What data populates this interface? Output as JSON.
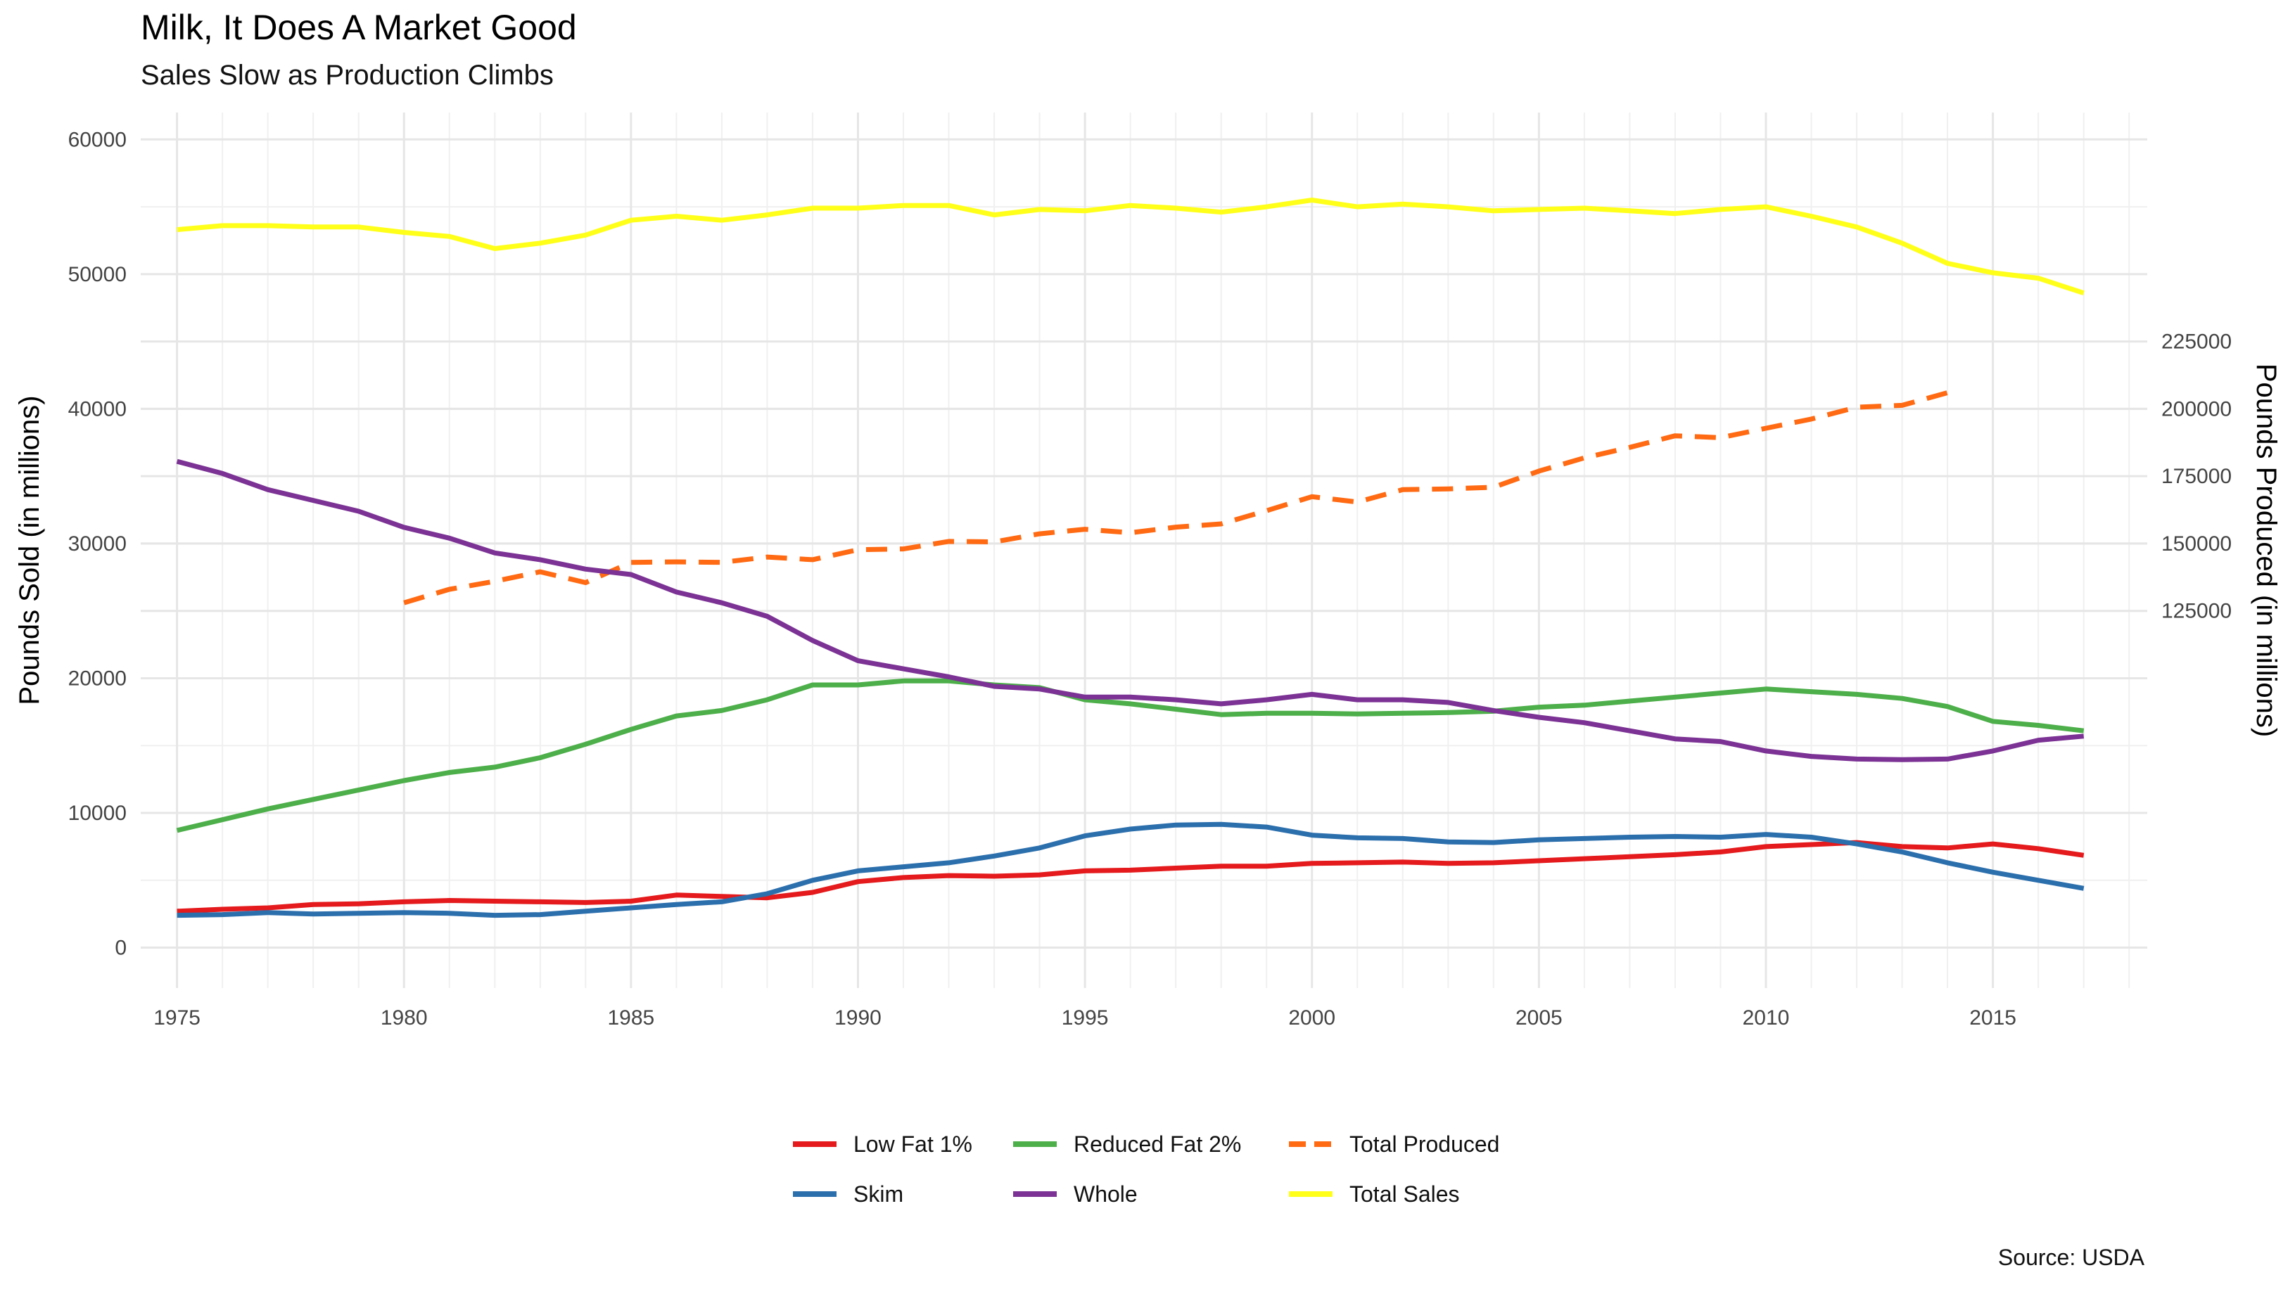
{
  "chart_data": {
    "type": "line",
    "title": "Milk, It Does A Market Good",
    "subtitle": "Sales Slow as Production Climbs",
    "caption": "Source: USDA",
    "ylabel": "Pounds Sold (in millions)",
    "y2label": "Pounds Produced (in millions)",
    "xlim": [
      1974.2,
      2018.4
    ],
    "ylim": [
      -3000,
      62000
    ],
    "y2_transform": {
      "note": "secondary axis maps produced = 5 * sold_axis",
      "factor": 5
    },
    "x_ticks": [
      1975,
      1980,
      1985,
      1990,
      1995,
      2000,
      2005,
      2010,
      2015
    ],
    "y_ticks": [
      0,
      10000,
      20000,
      30000,
      40000,
      50000,
      60000
    ],
    "y2_ticks": [
      125000,
      150000,
      175000,
      200000,
      225000
    ],
    "grid": true,
    "legend_position": "bottom",
    "x": [
      1975,
      1976,
      1977,
      1978,
      1979,
      1980,
      1981,
      1982,
      1983,
      1984,
      1985,
      1986,
      1987,
      1988,
      1989,
      1990,
      1991,
      1992,
      1993,
      1994,
      1995,
      1996,
      1997,
      1998,
      1999,
      2000,
      2001,
      2002,
      2003,
      2004,
      2005,
      2006,
      2007,
      2008,
      2009,
      2010,
      2011,
      2012,
      2013,
      2014,
      2015,
      2016,
      2017
    ],
    "series": [
      {
        "name": "Low Fat 1%",
        "color": "#e41a1c",
        "dashed": false,
        "axis": "left",
        "values": [
          2700,
          2850,
          2950,
          3200,
          3250,
          3400,
          3500,
          3450,
          3400,
          3350,
          3450,
          3900,
          3800,
          3700,
          4100,
          4900,
          5200,
          5350,
          5300,
          5400,
          5700,
          5750,
          5900,
          6050,
          6050,
          6250,
          6300,
          6350,
          6250,
          6300,
          6450,
          6600,
          6750,
          6900,
          7100,
          7500,
          7650,
          7800,
          7500,
          7400,
          7700,
          7350,
          6850
        ]
      },
      {
        "name": "Reduced Fat 2%",
        "color": "#4daf4a",
        "dashed": false,
        "axis": "left",
        "values": [
          8700,
          9500,
          10300,
          11000,
          11700,
          12400,
          13000,
          13400,
          14100,
          15100,
          16200,
          17200,
          17600,
          18400,
          19500,
          19500,
          19800,
          19800,
          19500,
          19300,
          18400,
          18100,
          17700,
          17300,
          17400,
          17400,
          17350,
          17400,
          17450,
          17550,
          17850,
          18000,
          18300,
          18600,
          18900,
          19200,
          19000,
          18800,
          18500,
          17900,
          16800,
          16500,
          16100
        ]
      },
      {
        "name": "Total Produced",
        "color": "#ff6a13",
        "dashed": true,
        "axis": "right",
        "x": [
          1980,
          1981,
          1982,
          1983,
          1984,
          1985,
          1986,
          1987,
          1988,
          1989,
          1990,
          1991,
          1992,
          1993,
          1994,
          1995,
          1996,
          1997,
          1998,
          1999,
          2000,
          2001,
          2002,
          2003,
          2004,
          2005,
          2006,
          2007,
          2008,
          2009,
          2010,
          2011,
          2012,
          2013,
          2014
        ],
        "values": [
          128000,
          133000,
          136000,
          139500,
          135500,
          143000,
          143200,
          143000,
          145000,
          144000,
          147700,
          148000,
          150800,
          150600,
          153600,
          155300,
          154000,
          156100,
          157300,
          162200,
          167400,
          165400,
          170000,
          170300,
          170900,
          176900,
          181800,
          185700,
          190000,
          189300,
          192800,
          196200,
          200600,
          201300,
          206000
        ]
      },
      {
        "name": "Skim",
        "color": "#2c6fad",
        "dashed": false,
        "axis": "left",
        "values": [
          2400,
          2450,
          2600,
          2500,
          2550,
          2600,
          2550,
          2400,
          2450,
          2700,
          2950,
          3200,
          3400,
          4000,
          5000,
          5700,
          6000,
          6300,
          6800,
          7400,
          8300,
          8800,
          9100,
          9150,
          8950,
          8350,
          8150,
          8100,
          7850,
          7800,
          8000,
          8100,
          8200,
          8250,
          8200,
          8400,
          8200,
          7700,
          7100,
          6300,
          5600,
          5000,
          4400
        ]
      },
      {
        "name": "Whole",
        "color": "#7b3294",
        "dashed": false,
        "axis": "left",
        "values": [
          36100,
          35200,
          34000,
          33200,
          32400,
          31200,
          30400,
          29300,
          28800,
          28100,
          27700,
          26400,
          25600,
          24600,
          22800,
          21300,
          20700,
          20100,
          19400,
          19200,
          18600,
          18600,
          18400,
          18100,
          18400,
          18800,
          18400,
          18400,
          18200,
          17600,
          17100,
          16700,
          16100,
          15500,
          15300,
          14600,
          14200,
          14000,
          13950,
          14000,
          14600,
          15400,
          15700
        ]
      },
      {
        "name": "Total Sales",
        "color": "#ffff1a",
        "dashed": false,
        "axis": "left",
        "values": [
          53300,
          53600,
          53600,
          53500,
          53500,
          53100,
          52800,
          51900,
          52300,
          52900,
          54000,
          54300,
          54000,
          54400,
          54900,
          54900,
          55100,
          55100,
          54400,
          54800,
          54700,
          55100,
          54900,
          54600,
          55000,
          55500,
          55000,
          55200,
          55000,
          54700,
          54800,
          54900,
          54700,
          54500,
          54800,
          55000,
          54300,
          53500,
          52300,
          50800,
          50100,
          49700,
          48600
        ]
      }
    ]
  }
}
